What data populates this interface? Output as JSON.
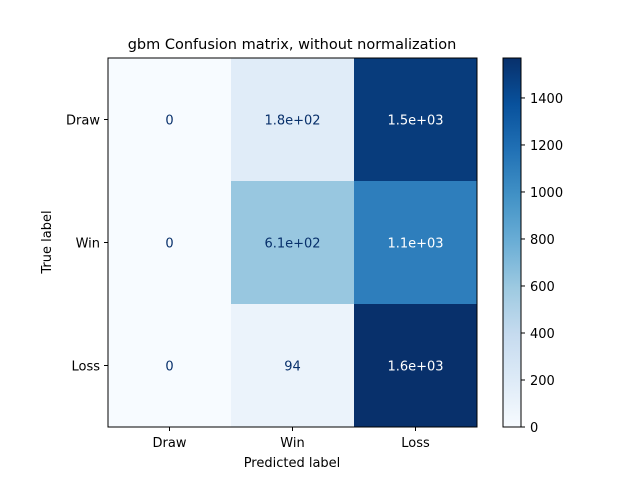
{
  "chart_data": {
    "type": "heatmap",
    "title": "gbm Confusion matrix, without normalization",
    "xlabel": "Predicted label",
    "ylabel": "True label",
    "x_categories": [
      "Draw",
      "Win",
      "Loss"
    ],
    "y_categories": [
      "Draw",
      "Win",
      "Loss"
    ],
    "values": [
      [
        0,
        180,
        1500
      ],
      [
        0,
        610,
        1100
      ],
      [
        0,
        94,
        1570
      ]
    ],
    "cell_labels": [
      [
        "0",
        "1.8e+02",
        "1.5e+03"
      ],
      [
        "0",
        "6.1e+02",
        "1.1e+03"
      ],
      [
        "0",
        "94",
        "1.6e+03"
      ]
    ],
    "colormap": "Blues",
    "colorbar": {
      "min": 0,
      "max": 1570,
      "ticks": [
        0,
        200,
        400,
        600,
        800,
        1000,
        1200,
        1400
      ]
    },
    "grid": false
  }
}
